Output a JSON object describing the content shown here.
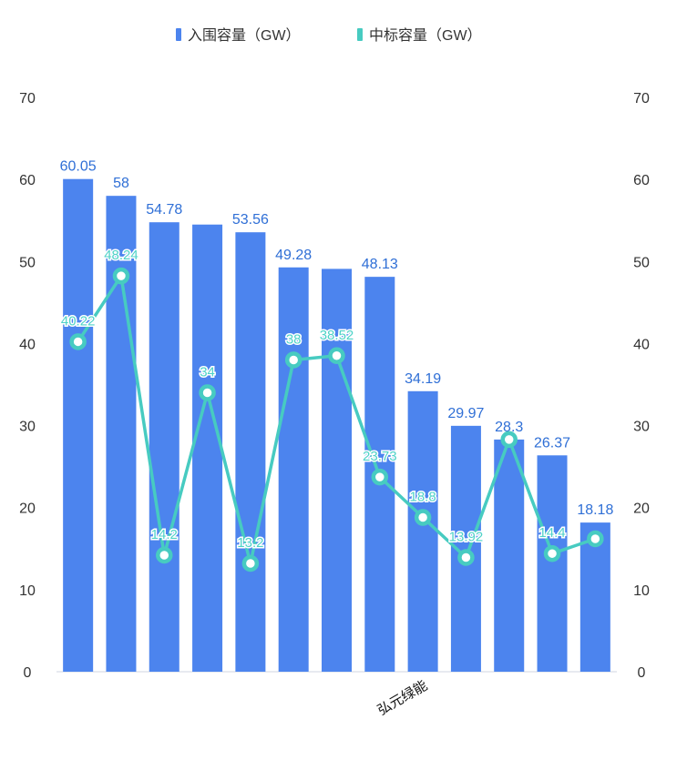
{
  "colors": {
    "bar": "#4c84ee",
    "line": "#47cbc1",
    "bar_label": "#2f6fd6",
    "line_label": "#4fd2c8",
    "axis": "#cfd6e0"
  },
  "chart_data": {
    "type": "bar",
    "categories": [
      "",
      "",
      "",
      "",
      "",
      "",
      "",
      "",
      "弘元绿能",
      "",
      "",
      "",
      ""
    ],
    "series": [
      {
        "name": "入围容量（GW）",
        "type": "bar",
        "values": [
          60.05,
          58,
          54.78,
          54.5,
          53.56,
          49.28,
          49.1,
          48.13,
          34.19,
          29.97,
          28.3,
          26.37,
          18.18
        ],
        "labels": [
          "60.05",
          "58",
          "54.78",
          "",
          "53.56",
          "49.28",
          "",
          "48.13",
          "34.19",
          "29.97",
          "28.3",
          "26.37",
          "18.18"
        ]
      },
      {
        "name": "中标容量（GW）",
        "type": "line",
        "values": [
          40.22,
          48.24,
          14.2,
          34,
          13.2,
          38,
          38.52,
          23.73,
          18.8,
          13.92,
          28.3,
          14.4,
          16.2
        ],
        "labels": [
          "40.22",
          "48.24",
          "14.2",
          "34",
          "13.2",
          "38",
          "38.52",
          "23.73",
          "18.8",
          "13.92",
          "",
          "14.4",
          ""
        ]
      }
    ],
    "y_left": {
      "ylim": [
        0,
        70
      ],
      "ticks": [
        0,
        10,
        20,
        30,
        40,
        50,
        60,
        70
      ]
    },
    "y_right": {
      "ylim": [
        0,
        70
      ],
      "ticks": [
        0,
        10,
        20,
        30,
        40,
        50,
        60,
        70
      ]
    },
    "legend": "top-center",
    "grid": false
  }
}
